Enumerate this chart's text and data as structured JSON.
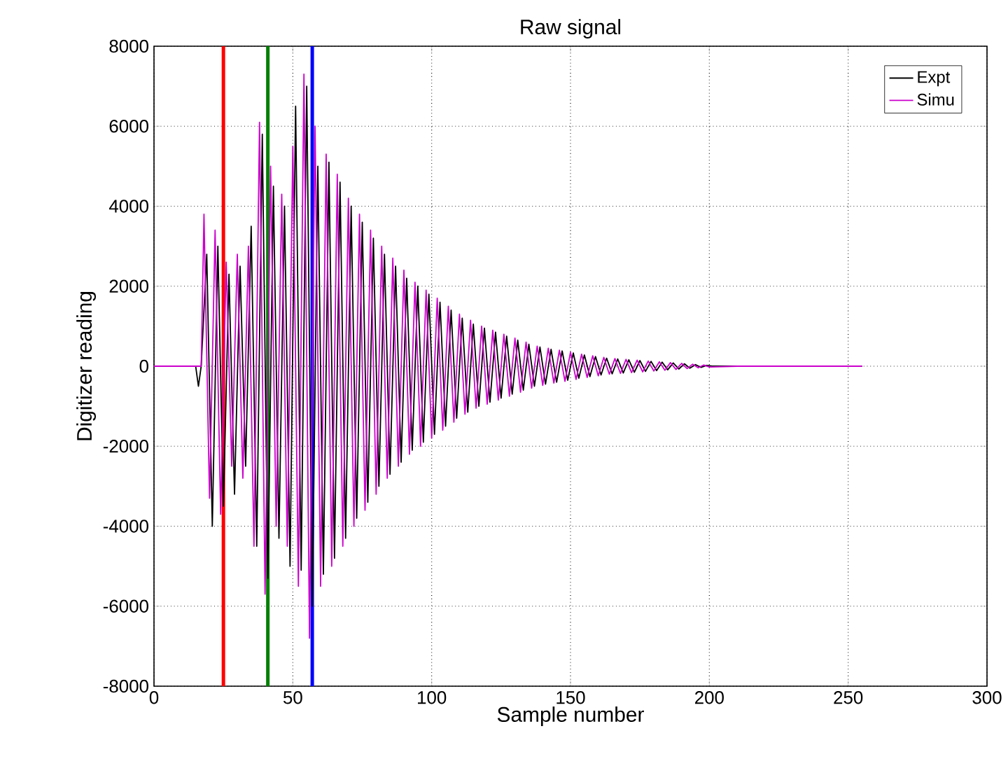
{
  "chart_data": {
    "type": "line",
    "title": "Raw signal",
    "xlabel": "Sample number",
    "ylabel": "Digitizer reading",
    "xlim": [
      0,
      300
    ],
    "xticks": [
      0,
      50,
      100,
      150,
      200,
      250,
      300
    ],
    "ylim": [
      -8000,
      8000
    ],
    "yticks": [
      -8000,
      -6000,
      -4000,
      -2000,
      0,
      2000,
      4000,
      6000,
      8000
    ],
    "grid": true,
    "legend": "top right",
    "marker": "none",
    "line_style": "solid",
    "ref_lines": [
      {
        "axis": "x",
        "value": 25,
        "color": "#ff0000"
      },
      {
        "axis": "x",
        "value": 41,
        "color": "#008000"
      },
      {
        "axis": "x",
        "value": 57,
        "color": "#0000ff"
      }
    ],
    "series": [
      {
        "name": "Expt",
        "color": "#000000",
        "x": [
          0,
          15,
          16,
          17,
          19,
          21,
          23,
          25,
          27,
          29,
          31,
          33,
          35,
          37,
          39,
          41,
          43,
          45,
          47,
          49,
          51,
          53,
          55,
          57,
          59,
          61,
          63,
          65,
          67,
          69,
          71,
          73,
          75,
          77,
          79,
          81,
          83,
          85,
          87,
          89,
          91,
          93,
          95,
          97,
          99,
          101,
          103,
          105,
          107,
          109,
          111,
          113,
          115,
          117,
          119,
          121,
          123,
          125,
          127,
          129,
          131,
          133,
          135,
          137,
          139,
          141,
          143,
          145,
          147,
          149,
          151,
          153,
          155,
          157,
          159,
          161,
          163,
          165,
          167,
          169,
          171,
          173,
          175,
          177,
          179,
          181,
          183,
          185,
          187,
          189,
          191,
          193,
          195,
          197,
          199,
          201,
          255
        ],
        "values": [
          0,
          0,
          -500,
          0,
          2800,
          -4000,
          3000,
          -3500,
          2300,
          -3200,
          2500,
          -2500,
          3500,
          -4500,
          5800,
          -5300,
          4500,
          -4300,
          4000,
          -5000,
          6500,
          -5100,
          7000,
          -6000,
          5000,
          -5200,
          5100,
          -4800,
          4600,
          -4300,
          4000,
          -3800,
          3600,
          -3400,
          3200,
          -3000,
          2800,
          -2700,
          2500,
          -2400,
          2200,
          -2100,
          2000,
          -1900,
          1800,
          -1700,
          1600,
          -1500,
          1400,
          -1300,
          1200,
          -1150,
          1050,
          -1000,
          950,
          -900,
          850,
          -800,
          750,
          -700,
          650,
          -600,
          550,
          -500,
          480,
          -450,
          420,
          -400,
          380,
          -350,
          330,
          -300,
          280,
          -260,
          240,
          -220,
          200,
          -190,
          180,
          -170,
          160,
          -150,
          140,
          -130,
          120,
          -110,
          100,
          -90,
          80,
          -70,
          60,
          -50,
          40,
          -30,
          20,
          0,
          0
        ]
      },
      {
        "name": "Simu",
        "color": "#cc00cc",
        "x": [
          0,
          17,
          18,
          20,
          22,
          24,
          26,
          28,
          30,
          32,
          34,
          36,
          38,
          40,
          42,
          44,
          46,
          48,
          50,
          52,
          54,
          56,
          58,
          60,
          62,
          64,
          66,
          68,
          70,
          72,
          74,
          76,
          78,
          80,
          82,
          84,
          86,
          88,
          90,
          92,
          94,
          96,
          98,
          100,
          102,
          104,
          106,
          108,
          110,
          112,
          114,
          116,
          118,
          120,
          122,
          124,
          126,
          128,
          130,
          132,
          134,
          136,
          138,
          140,
          142,
          144,
          146,
          148,
          150,
          152,
          154,
          156,
          158,
          160,
          162,
          164,
          166,
          168,
          170,
          172,
          174,
          176,
          178,
          180,
          182,
          184,
          186,
          188,
          190,
          192,
          194,
          196,
          198,
          200,
          210,
          255
        ],
        "values": [
          0,
          0,
          3800,
          -3300,
          3400,
          -3700,
          2600,
          -2500,
          2800,
          -2800,
          3000,
          -4500,
          6100,
          -5700,
          5000,
          -4000,
          4300,
          -4500,
          5500,
          -5500,
          7300,
          -6800,
          6000,
          -5500,
          5300,
          -5000,
          4800,
          -4500,
          4200,
          -4000,
          3800,
          -3600,
          3400,
          -3200,
          3000,
          -2800,
          2700,
          -2500,
          2400,
          -2200,
          2100,
          -2000,
          1900,
          -1800,
          1700,
          -1600,
          1500,
          -1400,
          1300,
          -1200,
          1150,
          -1050,
          1000,
          -950,
          900,
          -850,
          800,
          -750,
          700,
          -650,
          600,
          -550,
          500,
          -480,
          450,
          -420,
          400,
          -380,
          350,
          -330,
          300,
          -280,
          260,
          -240,
          220,
          -200,
          190,
          -180,
          170,
          -160,
          150,
          -140,
          130,
          -120,
          110,
          -100,
          90,
          -80,
          70,
          -60,
          50,
          -40,
          30,
          -20,
          0,
          0
        ]
      }
    ]
  }
}
